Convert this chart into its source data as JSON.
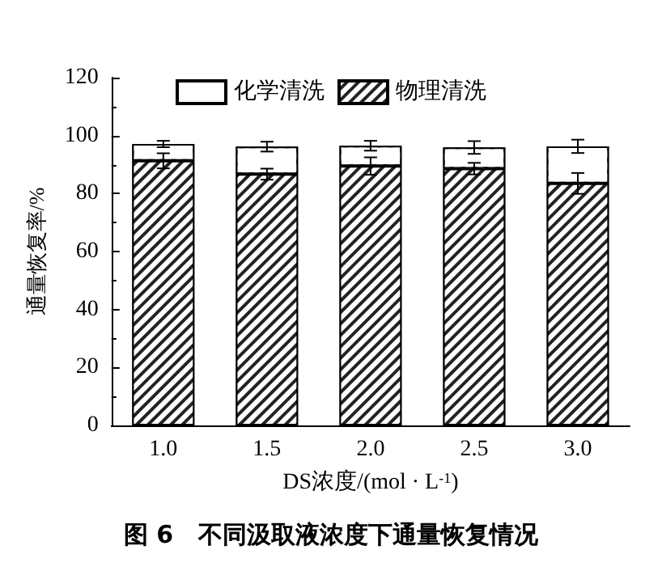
{
  "chart_data": {
    "type": "bar",
    "stacked": true,
    "title": "图 6   不同汲取液浓度下通量恢复情况",
    "xlabel": "DS浓度/(mol · L$^{-1}$)",
    "ylabel": "通量恢复率/%",
    "categories": [
      "1.0",
      "1.5",
      "2.0",
      "2.5",
      "3.0"
    ],
    "series": [
      {
        "name": "物理清洗",
        "color": "#222222",
        "values": [
          91.3,
          86.7,
          89.5,
          88.6,
          83.5
        ],
        "errors": [
          2.6,
          1.9,
          3.0,
          2.0,
          3.6
        ]
      },
      {
        "name": "化学清洗",
        "color": "#ffffff",
        "values": [
          5.8,
          9.5,
          7.0,
          7.3,
          12.8
        ],
        "errors": [
          1.1,
          1.7,
          1.7,
          2.2,
          2.3
        ]
      }
    ],
    "ylim": [
      0,
      120
    ],
    "yticks": [
      0,
      20,
      40,
      60,
      80,
      100,
      120
    ],
    "grid": false,
    "legend": "top"
  }
}
